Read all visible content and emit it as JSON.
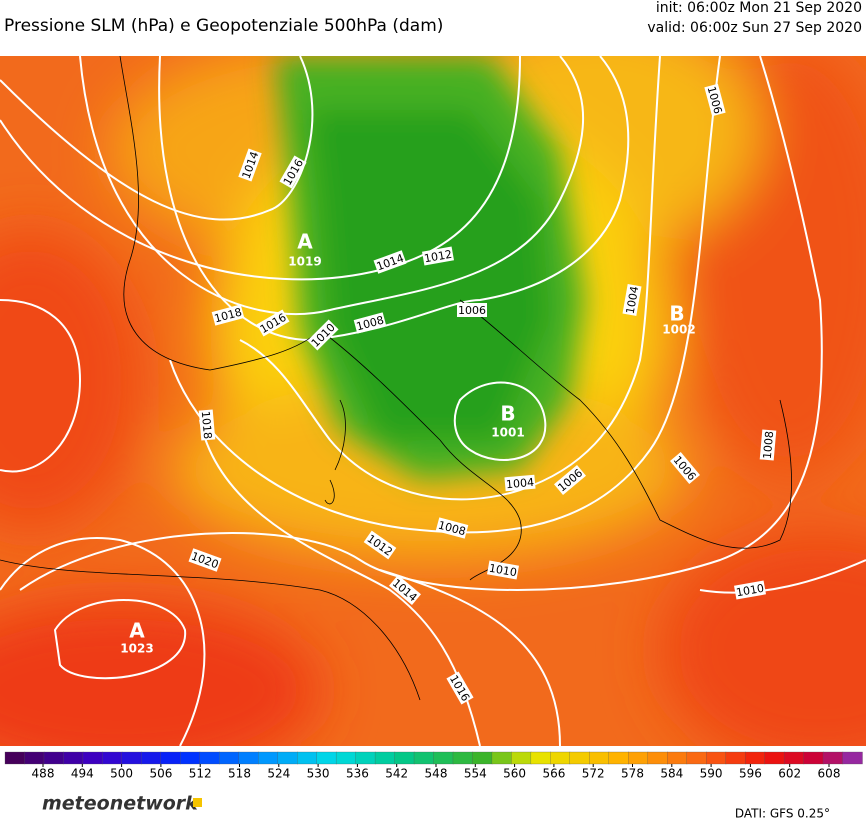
{
  "header": {
    "title": "Pressione SLM (hPa) e Geopotenziale 500hPa (dam)",
    "init": "init: 06:00z Mon 21 Sep 2020",
    "valid": "valid: 06:00z Sun 27 Sep 2020"
  },
  "map": {
    "centers": [
      {
        "symbol": "A",
        "value": "1019"
      },
      {
        "symbol": "B",
        "value": "1001"
      },
      {
        "symbol": "B",
        "value": "1002"
      },
      {
        "symbol": "A",
        "value": "1023"
      }
    ],
    "isobar_labels": [
      "1014",
      "1016",
      "1014",
      "1012",
      "1018",
      "1016",
      "1010",
      "1008",
      "1006",
      "1004",
      "1006",
      "1018",
      "1004",
      "1006",
      "1006",
      "1008",
      "1008",
      "1012",
      "1014",
      "1010",
      "1010",
      "1020",
      "1016"
    ]
  },
  "colorbar": {
    "ticks": [
      488,
      494,
      500,
      506,
      512,
      518,
      524,
      530,
      536,
      542,
      548,
      554,
      560,
      566,
      572,
      578,
      584,
      590,
      596,
      602,
      608
    ]
  },
  "footer": {
    "logo": "meteonetwork",
    "source": "DATI: GFS 0.25°"
  }
}
